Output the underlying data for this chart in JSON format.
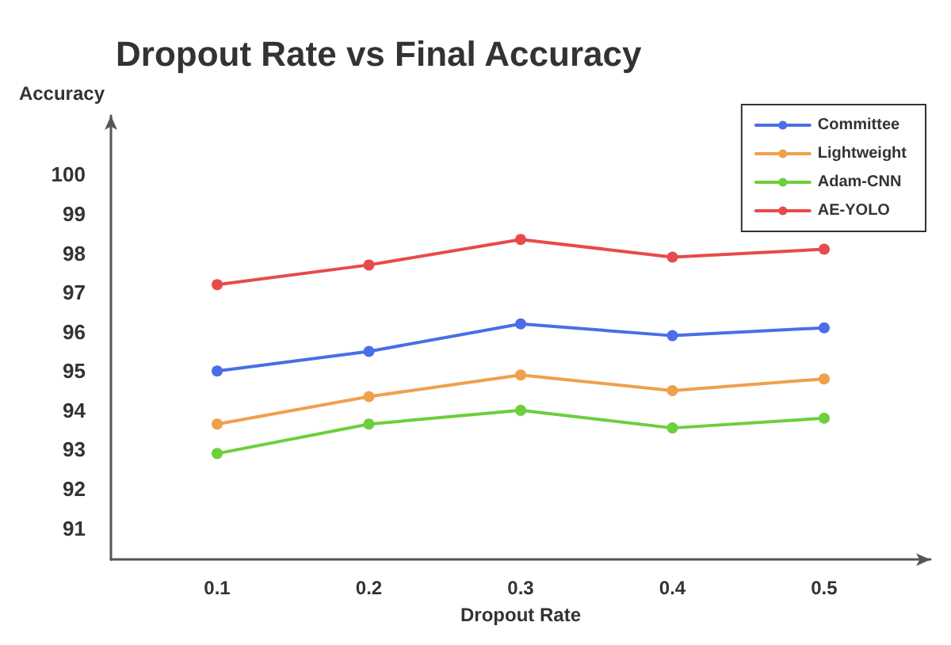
{
  "chart_data": {
    "type": "line",
    "title": "Dropout Rate vs Final Accuracy",
    "xlabel": "Dropout Rate",
    "ylabel": "Accuracy",
    "x": [
      0.1,
      0.2,
      0.3,
      0.4,
      0.5
    ],
    "series": [
      {
        "name": "Committee",
        "color": "#4a6ee8",
        "values": [
          95.0,
          95.5,
          96.2,
          95.9,
          96.1
        ]
      },
      {
        "name": "Lightweight",
        "color": "#f0a04b",
        "values": [
          93.65,
          94.35,
          94.9,
          94.5,
          94.8
        ]
      },
      {
        "name": "Adam-CNN",
        "color": "#6ccf3c",
        "values": [
          92.9,
          93.65,
          94.0,
          93.55,
          93.8
        ]
      },
      {
        "name": "AE-YOLO",
        "color": "#e84a4a",
        "values": [
          97.2,
          97.7,
          98.35,
          97.9,
          98.1
        ]
      }
    ],
    "xlim": [
      0.03,
      0.57
    ],
    "xticks": [
      0.1,
      0.2,
      0.3,
      0.4,
      0.5
    ],
    "ylim": [
      90.2,
      101.5
    ],
    "yticks": [
      91,
      92,
      93,
      94,
      95,
      96,
      97,
      98,
      99,
      100
    ],
    "grid": false,
    "legend": "top right",
    "marker": "circle",
    "line_style": "solid"
  }
}
